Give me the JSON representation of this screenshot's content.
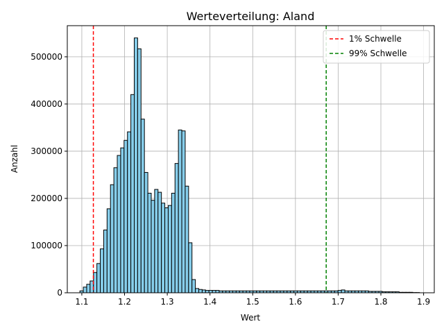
{
  "chart_data": {
    "type": "histogram",
    "title": "Werteverteilung: Aland",
    "xlabel": "Wert",
    "ylabel": "Anzahl",
    "xlim": [
      1.066,
      1.925
    ],
    "ylim": [
      0,
      566000
    ],
    "xticks": [
      1.1,
      1.2,
      1.3,
      1.4,
      1.5,
      1.6,
      1.7,
      1.8,
      1.9
    ],
    "xtick_labels": [
      "1.1",
      "1.2",
      "1.3",
      "1.4",
      "1.5",
      "1.6",
      "1.7",
      "1.8",
      "1.9"
    ],
    "yticks": [
      0,
      100000,
      200000,
      300000,
      400000,
      500000
    ],
    "ytick_labels": [
      "0",
      "100000",
      "200000",
      "300000",
      "400000",
      "500000"
    ],
    "grid": true,
    "bar_color": "#87ceeb",
    "bar_edge_color": "#000000",
    "bins": {
      "start": 1.0955,
      "width": 0.00795,
      "counts": [
        4000,
        12000,
        18000,
        25000,
        43000,
        62000,
        93000,
        133000,
        178000,
        229000,
        265000,
        291000,
        307000,
        323000,
        341000,
        420000,
        540000,
        517000,
        368000,
        255000,
        211000,
        196000,
        219000,
        213000,
        190000,
        180000,
        185000,
        211000,
        274000,
        345000,
        343000,
        226000,
        106000,
        28000,
        9000,
        7000,
        6000,
        5000,
        5000,
        5000,
        5000,
        4000,
        4000,
        4000,
        4000,
        4000,
        4000,
        4000,
        4000,
        4000,
        4000,
        4000,
        4000,
        4000,
        4000,
        4000,
        4000,
        4000,
        4000,
        4000,
        4000,
        4000,
        4000,
        4000,
        4000,
        4000,
        4000,
        4000,
        4000,
        4000,
        4000,
        4000,
        4000,
        4000,
        4000,
        4000,
        5000,
        6000,
        4000,
        4000,
        4000,
        4000,
        4000,
        4000,
        4000,
        3000,
        3000,
        3000,
        3000,
        2000,
        2000,
        2000,
        2000,
        2000,
        1000,
        1000,
        1000,
        1000,
        500,
        500
      ]
    },
    "threshold_lines": [
      {
        "name": "1% Schwelle",
        "x": 1.127,
        "color": "#ff0000"
      },
      {
        "name": "99% Schwelle",
        "x": 1.672,
        "color": "#008000"
      }
    ],
    "legend": {
      "position": "top-right",
      "entries": [
        "1% Schwelle",
        "99% Schwelle"
      ]
    }
  }
}
